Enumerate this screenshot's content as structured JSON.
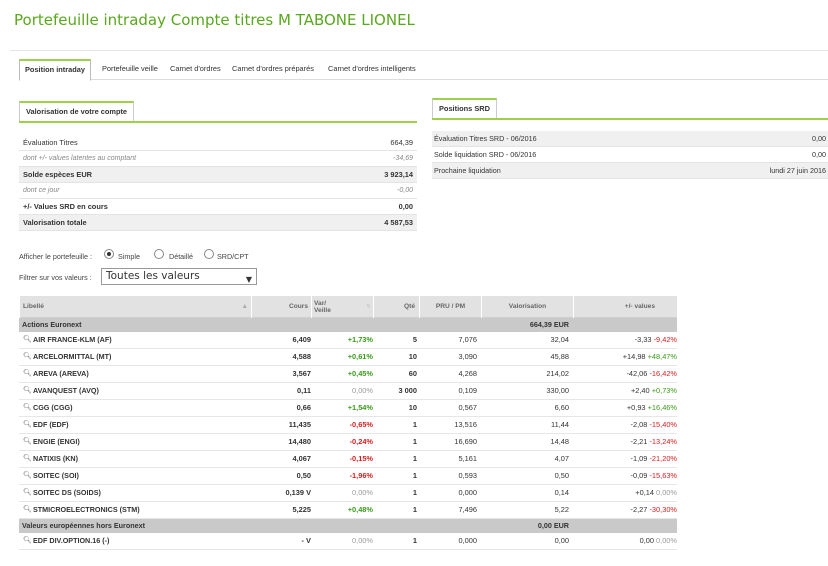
{
  "title": "Portefeuille intraday Compte titres M TABONE LIONEL",
  "tabs": [
    "Position intraday",
    "Portefeuille veille",
    "Carnet d'ordres",
    "Carnet d'ordres préparés",
    "Carnet d'ordres intelligents"
  ],
  "valorisation": {
    "heading": "Valorisation de votre compte",
    "rows": [
      {
        "label": "Évaluation Titres",
        "value": "664,39"
      },
      {
        "label": "dont +/- values latentes au comptant",
        "value": "-34,69"
      },
      {
        "label": "Solde espèces EUR",
        "value": "3 923,14"
      },
      {
        "label": "dont ce jour",
        "value": "-0,00"
      },
      {
        "label": "+/- Values SRD en cours",
        "value": "0,00"
      },
      {
        "label": "Valorisation totale",
        "value": "4 587,53"
      }
    ]
  },
  "srd": {
    "heading": "Positions SRD",
    "rows": [
      {
        "label": "Évaluation Titres SRD - 06/2016",
        "value": "0,00"
      },
      {
        "label": "Solde liquidation SRD - 06/2016",
        "value": "0,00"
      },
      {
        "label": "Prochaine liquidation",
        "value": "lundi 27 juin 2016"
      }
    ]
  },
  "options": {
    "label": "Afficher le portefeuille :",
    "choices": [
      "Simple",
      "Détaillé",
      "SRD/CPT"
    ],
    "selected": "Simple",
    "filter_label": "Filtrer sur vos valeurs :",
    "filter_value": "Toutes les valeurs"
  },
  "grid": {
    "headers": {
      "libelle": "Libellé",
      "cours": "Cours",
      "var1": "Var/",
      "var2": "Veille",
      "qty": "Qté",
      "pru": "PRU / PM",
      "valo": "Valorisation",
      "pv": "+/- values"
    },
    "groups": [
      {
        "name": "Actions Euronext",
        "total": "664,39 EUR",
        "rows": [
          {
            "name": "AIR FRANCE-KLM (AF)",
            "cours": "6,409",
            "var": "+1,73%",
            "var_color": "g",
            "qty": "5",
            "pru": "7,076",
            "valo": "32,04",
            "pv": "-3,33",
            "pv_pct": "-9,42%",
            "pv_color": "r"
          },
          {
            "name": "ARCELORMITTAL (MT)",
            "cours": "4,588",
            "var": "+0,61%",
            "var_color": "g",
            "qty": "10",
            "pru": "3,090",
            "valo": "45,88",
            "pv": "+14,98",
            "pv_pct": "+48,47%",
            "pv_color": "g"
          },
          {
            "name": "AREVA (AREVA)",
            "cours": "3,567",
            "var": "+0,45%",
            "var_color": "g",
            "qty": "60",
            "pru": "4,268",
            "valo": "214,02",
            "pv": "-42,06",
            "pv_pct": "-16,42%",
            "pv_color": "r"
          },
          {
            "name": "AVANQUEST (AVQ)",
            "cours": "0,11",
            "var": "0,00%",
            "var_color": "gr",
            "qty": "3 000",
            "pru": "0,109",
            "valo": "330,00",
            "pv": "+2,40",
            "pv_pct": "+0,73%",
            "pv_color": "g"
          },
          {
            "name": "CGG (CGG)",
            "cours": "0,66",
            "var": "+1,54%",
            "var_color": "g",
            "qty": "10",
            "pru": "0,567",
            "valo": "6,60",
            "pv": "+0,93",
            "pv_pct": "+16,46%",
            "pv_color": "g"
          },
          {
            "name": "EDF (EDF)",
            "cours": "11,435",
            "var": "-0,65%",
            "var_color": "r",
            "qty": "1",
            "pru": "13,516",
            "valo": "11,44",
            "pv": "-2,08",
            "pv_pct": "-15,40%",
            "pv_color": "r"
          },
          {
            "name": "ENGIE (ENGI)",
            "cours": "14,480",
            "var": "-0,24%",
            "var_color": "r",
            "qty": "1",
            "pru": "16,690",
            "valo": "14,48",
            "pv": "-2,21",
            "pv_pct": "-13,24%",
            "pv_color": "r"
          },
          {
            "name": "NATIXIS (KN)",
            "cours": "4,067",
            "var": "-0,15%",
            "var_color": "r",
            "qty": "1",
            "pru": "5,161",
            "valo": "4,07",
            "pv": "-1,09",
            "pv_pct": "-21,20%",
            "pv_color": "r"
          },
          {
            "name": "SOITEC (SOI)",
            "cours": "0,50",
            "var": "-1,96%",
            "var_color": "r",
            "qty": "1",
            "pru": "0,593",
            "valo": "0,50",
            "pv": "-0,09",
            "pv_pct": "-15,63%",
            "pv_color": "r"
          },
          {
            "name": "SOITEC DS (SOIDS)",
            "cours": "0,139 V",
            "var": "0,00%",
            "var_color": "gr",
            "qty": "1",
            "pru": "0,000",
            "valo": "0,14",
            "pv": "+0,14",
            "pv_pct": "0,00%",
            "pv_color": "gr"
          },
          {
            "name": "STMICROELECTRONICS (STM)",
            "cours": "5,225",
            "var": "+0,48%",
            "var_color": "g",
            "qty": "1",
            "pru": "7,496",
            "valo": "5,22",
            "pv": "-2,27",
            "pv_pct": "-30,30%",
            "pv_color": "r"
          }
        ]
      },
      {
        "name": "Valeurs européennes hors Euronext",
        "total": "0,00 EUR",
        "rows": [
          {
            "name": "EDF DIV.OPTION.16 (-)",
            "cours": "- V",
            "var": "0,00%",
            "var_color": "gr",
            "qty": "1",
            "pru": "0,000",
            "valo": "0,00",
            "pv": "0,00",
            "pv_pct": "0,00%",
            "pv_color": "gr"
          }
        ]
      }
    ]
  }
}
